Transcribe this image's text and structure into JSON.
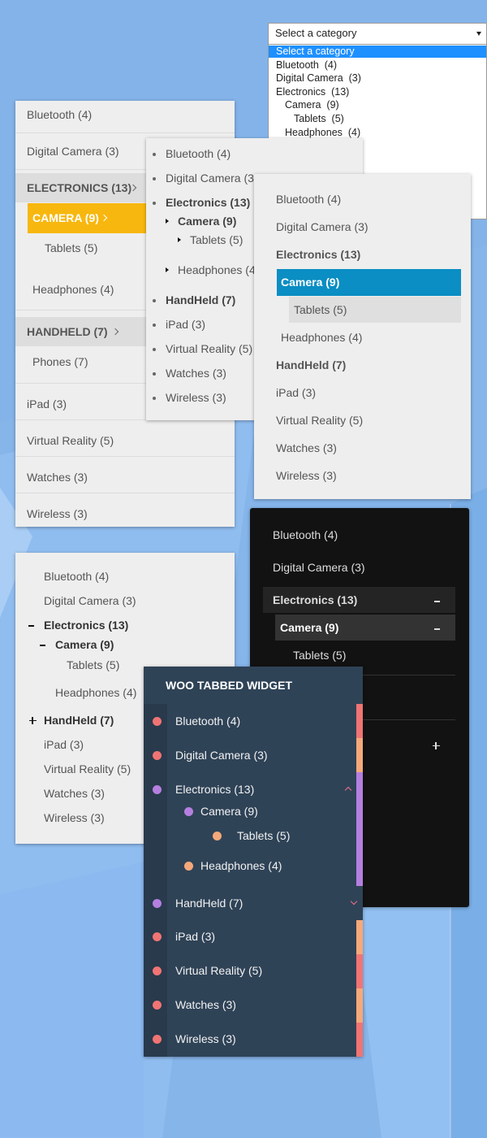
{
  "dropdown": {
    "placeholder": "Select a category",
    "options": [
      "Select a category",
      "Bluetooth  (4)",
      "Digital Camera  (3)",
      "Electronics  (13)",
      "Camera  (9)",
      "Tablets  (5)",
      "Headphones  (4)"
    ]
  },
  "accordion_menu": {
    "items": [
      "Bluetooth (4)",
      "Digital Camera (3)",
      "ELECTRONICS (13)",
      "CAMERA (9)",
      "Tablets (5)",
      "Headphones (4)",
      "HANDHELD (7)",
      "Phones (7)",
      "iPad (3)",
      "Virtual Reality (5)",
      "Watches (3)",
      "Wireless (3)"
    ]
  },
  "bullet_list": {
    "items": [
      "Bluetooth (4)",
      "Digital Camera (3)",
      "Electronics (13)",
      "Camera (9)",
      "Tablets (5)",
      "Headphones (4)",
      "HandHeld (7)",
      "iPad (3)",
      "Virtual Reality (5)",
      "Watches (3)",
      "Wireless (3)"
    ]
  },
  "highlight_list": {
    "items": [
      "Bluetooth (4)",
      "Digital Camera (3)",
      "Electronics (13)",
      "Camera (9)",
      "Tablets (5)",
      "Headphones (4)",
      "HandHeld (7)",
      "iPad (3)",
      "Virtual Reality (5)",
      "Watches (3)",
      "Wireless (3)"
    ]
  },
  "dark_accordion": {
    "items": [
      "Bluetooth (4)",
      "Digital Camera (3)",
      "Electronics (13)",
      "Camera (9)",
      "Tablets (5)"
    ]
  },
  "toggle_list": {
    "items": [
      "Bluetooth (4)",
      "Digital Camera (3)",
      "Electronics (13)",
      "Camera (9)",
      "Tablets (5)",
      "Headphones (4)",
      "HandHeld (7)",
      "iPad (3)",
      "Virtual Reality (5)",
      "Watches (3)",
      "Wireless (3)"
    ]
  },
  "tabbed_widget": {
    "title": "WOO TABBED WIDGET",
    "items": [
      "Bluetooth (4)",
      "Digital Camera (3)",
      "Electronics (13)",
      "Camera (9)",
      "Tablets (5)",
      "Headphones (4)",
      "HandHeld (7)",
      "iPad (3)",
      "Virtual Reality (5)",
      "Watches (3)",
      "Wireless (3)"
    ]
  }
}
